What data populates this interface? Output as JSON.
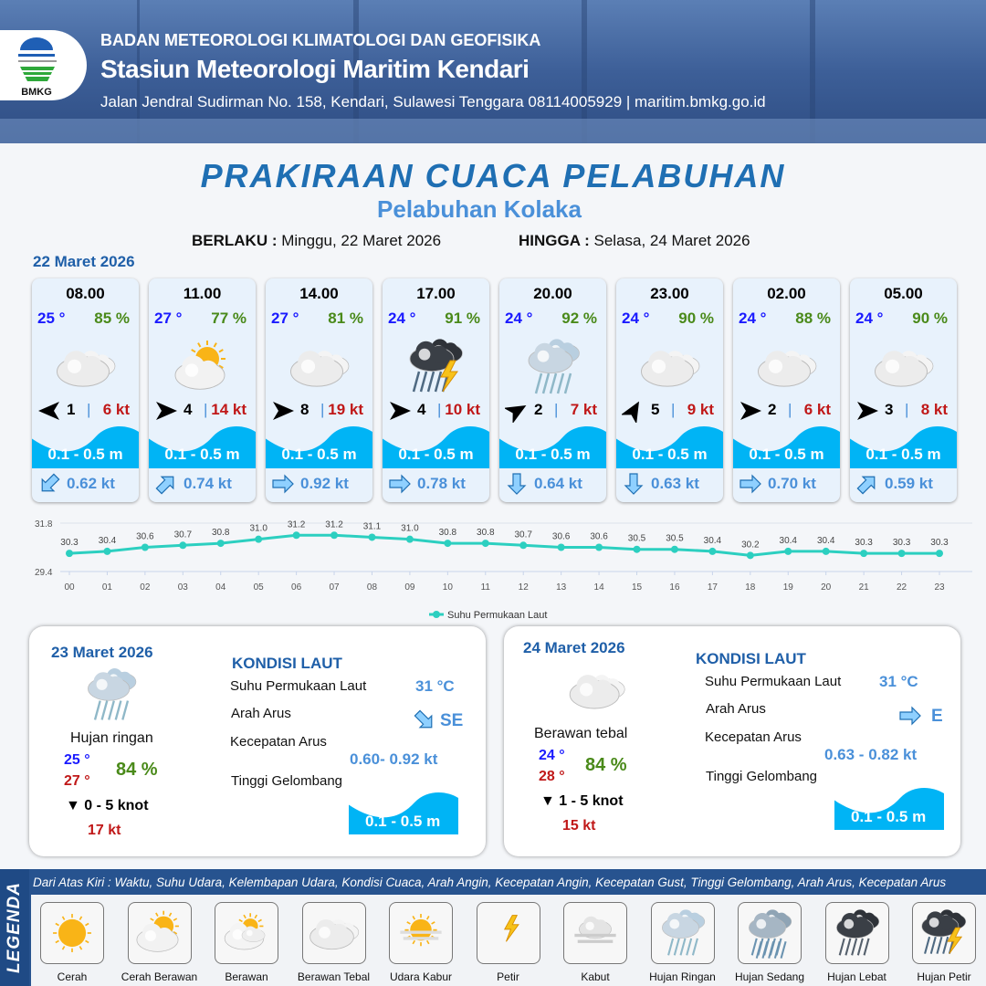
{
  "header": {
    "agency": "BADAN METEOROLOGI KLIMATOLOGI DAN GEOFISIKA",
    "station": "Stasiun Meteorologi Maritim Kendari",
    "address": "Jalan Jendral Sudirman No. 158, Kendari, Sulawesi Tenggara  08114005929 | maritim.bmkg.go.id",
    "logo_text": "BMKG"
  },
  "title": "PRAKIRAAN CUACA PELABUHAN",
  "subtitle": "Pelabuhan Kolaka",
  "validity": {
    "from_label": "BERLAKU :",
    "from": "Minggu, 22 Maret 2026",
    "to_label": "HINGGA :",
    "to": "Selasa, 24 Maret 2026"
  },
  "day1_label": "22 Maret 2026",
  "colors": {
    "title": "#1f6fb3",
    "temp": "#1a1aff",
    "humidity": "#4a8a1a",
    "gust": "#c01818",
    "wave": "#00b4f5",
    "current": "#4a90d9",
    "line": "#2ccfc0"
  },
  "cards": [
    {
      "time": "08.00",
      "temp": "25 °",
      "hum": "85 %",
      "icon": "berawan-tebal",
      "wind_dir_deg": 180,
      "wind": "1",
      "gust": "6 kt",
      "wave": "0.1 - 0.5 m",
      "cur_dir_deg": 135,
      "cur": "0.62 kt"
    },
    {
      "time": "11.00",
      "temp": "27 °",
      "hum": "77 %",
      "icon": "cerah-berawan",
      "wind_dir_deg": 0,
      "wind": "4",
      "gust": "14 kt",
      "wave": "0.1 - 0.5 m",
      "cur_dir_deg": -45,
      "cur": "0.74 kt"
    },
    {
      "time": "14.00",
      "temp": "27 °",
      "hum": "81 %",
      "icon": "berawan-tebal",
      "wind_dir_deg": 0,
      "wind": "8",
      "gust": "19 kt",
      "wave": "0.1 - 0.5 m",
      "cur_dir_deg": 0,
      "cur": "0.92 kt"
    },
    {
      "time": "17.00",
      "temp": "24 °",
      "hum": "91 %",
      "icon": "hujan-petir",
      "wind_dir_deg": 0,
      "wind": "4",
      "gust": "10 kt",
      "wave": "0.1 - 0.5 m",
      "cur_dir_deg": 0,
      "cur": "0.78 kt"
    },
    {
      "time": "20.00",
      "temp": "24 °",
      "hum": "92 %",
      "icon": "hujan-ringan",
      "wind_dir_deg": -30,
      "wind": "2",
      "gust": "7 kt",
      "wave": "0.1 - 0.5 m",
      "cur_dir_deg": 90,
      "cur": "0.64 kt"
    },
    {
      "time": "23.00",
      "temp": "24 °",
      "hum": "90 %",
      "icon": "berawan-tebal",
      "wind_dir_deg": -60,
      "wind": "5",
      "gust": "9 kt",
      "wave": "0.1 - 0.5 m",
      "cur_dir_deg": 90,
      "cur": "0.63 kt"
    },
    {
      "time": "02.00",
      "temp": "24 °",
      "hum": "88 %",
      "icon": "berawan-tebal",
      "wind_dir_deg": 0,
      "wind": "2",
      "gust": "6 kt",
      "wave": "0.1 - 0.5 m",
      "cur_dir_deg": 0,
      "cur": "0.70 kt"
    },
    {
      "time": "05.00",
      "temp": "24 °",
      "hum": "90 %",
      "icon": "berawan-tebal",
      "wind_dir_deg": 0,
      "wind": "3",
      "gust": "8 kt",
      "wave": "0.1 - 0.5 m",
      "cur_dir_deg": -45,
      "cur": "0.59 kt"
    }
  ],
  "chart_data": {
    "type": "line",
    "categories": [
      "00",
      "01",
      "02",
      "03",
      "04",
      "05",
      "06",
      "07",
      "08",
      "09",
      "10",
      "11",
      "12",
      "13",
      "14",
      "15",
      "16",
      "17",
      "18",
      "19",
      "20",
      "21",
      "22",
      "23"
    ],
    "series": [
      {
        "name": "Suhu Permukaan Laut",
        "values": [
          30.3,
          30.4,
          30.6,
          30.7,
          30.8,
          31.0,
          31.2,
          31.2,
          31.1,
          31.0,
          30.8,
          30.8,
          30.7,
          30.6,
          30.6,
          30.5,
          30.5,
          30.4,
          30.2,
          30.4,
          30.4,
          30.3,
          30.3,
          30.3
        ]
      }
    ],
    "ylim": [
      29.4,
      31.8
    ],
    "yticks": [
      "31.8",
      "29.4"
    ],
    "legend": "bottom",
    "grid": true
  },
  "panels": [
    {
      "date": "23 Maret 2026",
      "icon": "hujan-ringan",
      "condition": "Hujan ringan",
      "tmin": "25 °",
      "tmax": "27 °",
      "hum": "84 %",
      "wind": "0  - 5 knot",
      "gust": "17 kt",
      "kondisi": "KONDISI LAUT",
      "sst_label": "Suhu Permukaan Laut",
      "sst": "31 °C",
      "dir_label": "Arah Arus",
      "dir": "SE",
      "dir_deg": 45,
      "speed_label": "Kecepatan Arus",
      "speed": "0.60- 0.92 kt",
      "wave_label": "Tinggi Gelombang",
      "wave": "0.1 - 0.5 m"
    },
    {
      "date": "24 Maret 2026",
      "icon": "berawan-tebal",
      "condition": "Berawan tebal",
      "tmin": "24 °",
      "tmax": "28 °",
      "hum": "84 %",
      "wind": "1  - 5 knot",
      "gust": "15 kt",
      "kondisi": "KONDISI LAUT",
      "sst_label": "Suhu Permukaan Laut",
      "sst": "31 °C",
      "dir_label": "Arah Arus",
      "dir": "E",
      "dir_deg": 0,
      "speed_label": "Kecepatan Arus",
      "speed": "0.63  - 0.82 kt",
      "wave_label": "Tinggi Gelombang",
      "wave": "0.1 - 0.5 m"
    }
  ],
  "legend": {
    "label": "LEGENDA",
    "description": "Dari Atas Kiri : Waktu, Suhu Udara, Kelembapan Udara, Kondisi Cuaca, Arah Angin, Kecepatan Angin, Kecepatan Gust, Tinggi Gelombang, Arah Arus, Kecepatan Arus",
    "items": [
      {
        "label": "Cerah",
        "icon": "cerah"
      },
      {
        "label": "Cerah Berawan",
        "icon": "cerah-berawan"
      },
      {
        "label": "Berawan",
        "icon": "berawan"
      },
      {
        "label": "Berawan Tebal",
        "icon": "berawan-tebal"
      },
      {
        "label": "Udara Kabur",
        "icon": "udara-kabur"
      },
      {
        "label": "Petir",
        "icon": "petir"
      },
      {
        "label": "Kabut",
        "icon": "kabut"
      },
      {
        "label": "Hujan Ringan",
        "icon": "hujan-ringan"
      },
      {
        "label": "Hujan Sedang",
        "icon": "hujan-sedang"
      },
      {
        "label": "Hujan Lebat",
        "icon": "hujan-lebat"
      },
      {
        "label": "Hujan Petir",
        "icon": "hujan-petir"
      }
    ]
  }
}
